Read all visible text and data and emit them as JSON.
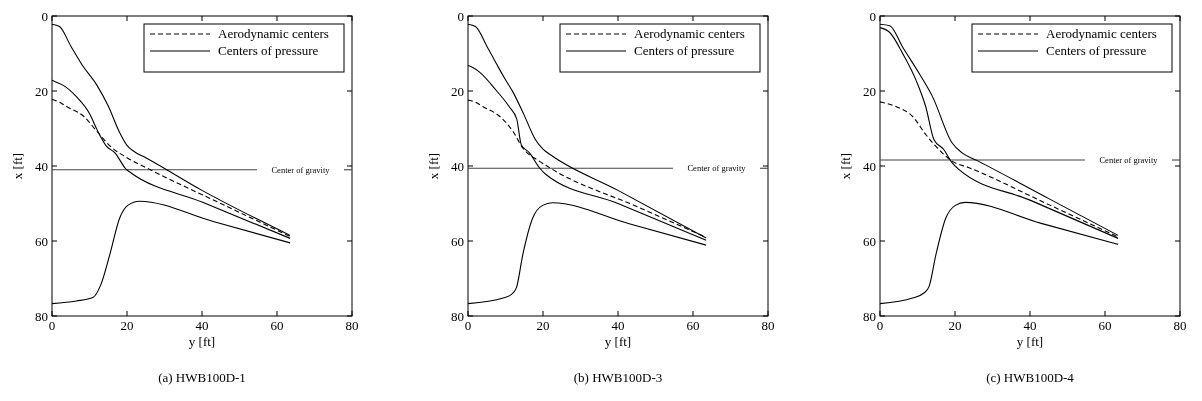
{
  "chart_data": [
    {
      "type": "line",
      "title": "(a) HWB100D-1",
      "xlabel": "y  [ft]",
      "ylabel": "x  [ft]",
      "xlim": [
        0,
        80
      ],
      "ylim": [
        80,
        0
      ],
      "xticks": [
        0,
        20,
        40,
        60,
        80
      ],
      "yticks": [
        0,
        20,
        40,
        60,
        80
      ],
      "legend": "top right",
      "grid": false,
      "ref_lines": [
        {
          "axis": "y",
          "value": 41,
          "label": "Center of gravity",
          "color": "#444444"
        }
      ],
      "series": [
        {
          "name": "Aerodynamic centers",
          "color": "#000000",
          "line_style": "dashed",
          "x": [
            0,
            2,
            4,
            8.5,
            12,
            15.5,
            20,
            26,
            45,
            63.5
          ],
          "values": [
            22.2,
            23,
            24.2,
            26.8,
            30.8,
            34.7,
            37.8,
            40.9,
            50,
            58.8
          ]
        },
        {
          "name": "Centers of pressure",
          "color": "#000000",
          "line_style": "solid",
          "x": [
            0,
            2,
            5,
            8,
            12,
            15,
            18,
            20,
            22,
            25,
            40,
            63.5
          ],
          "values": [
            2.2,
            2.8,
            8,
            13,
            18.5,
            24,
            31,
            34.5,
            36.2,
            37.8,
            46.5,
            58.5
          ]
        },
        {
          "color": "#000000",
          "line_style": "solid",
          "x": [
            0,
            1,
            3,
            6.5,
            10,
            12,
            14.5,
            16.8,
            19.8,
            21,
            40,
            63.5
          ],
          "values": [
            17.1,
            17.6,
            18.5,
            21.5,
            26,
            30.3,
            34.7,
            36.5,
            40.9,
            41.8,
            49.6,
            59.3
          ]
        },
        {
          "color": "#000000",
          "line_style": "solid",
          "x": [
            0,
            6.5,
            11,
            13,
            15.5,
            18,
            20.2,
            23.3,
            43,
            63.5
          ],
          "values": [
            76.7,
            76,
            75,
            71.7,
            63.3,
            54,
            50.5,
            49.4,
            54.8,
            60.5
          ]
        }
      ]
    },
    {
      "type": "line",
      "title": "(b) HWB100D-3",
      "xlabel": "y  [ft]",
      "ylabel": "x  [ft]",
      "xlim": [
        0,
        80
      ],
      "ylim": [
        80,
        0
      ],
      "xticks": [
        0,
        20,
        40,
        60,
        80
      ],
      "yticks": [
        0,
        20,
        40,
        60,
        80
      ],
      "legend": "top right",
      "grid": false,
      "ref_lines": [
        {
          "axis": "y",
          "value": 40.6,
          "label": "Center of gravity",
          "color": "#444444"
        }
      ],
      "series": [
        {
          "name": "Aerodynamic centers",
          "color": "#000000",
          "line_style": "dashed",
          "x": [
            0,
            2,
            4,
            8.5,
            12,
            14.6,
            19,
            22.5,
            45,
            63.5
          ],
          "values": [
            22.4,
            23,
            24.2,
            26.8,
            30.8,
            35.2,
            38.7,
            40.9,
            50.8,
            59
          ]
        },
        {
          "name": "Centers of pressure",
          "color": "#000000",
          "line_style": "solid",
          "x": [
            0,
            2,
            5,
            8,
            10,
            12,
            15,
            18,
            20,
            22,
            40,
            63.5
          ],
          "values": [
            2.2,
            2.8,
            8,
            13.5,
            17,
            20.3,
            26.5,
            33,
            35.5,
            37,
            46.5,
            59.2
          ]
        },
        {
          "color": "#000000",
          "line_style": "solid",
          "x": [
            0,
            1,
            3,
            7.5,
            11,
            13,
            14.2,
            16.4,
            19,
            20.7,
            40,
            63.5
          ],
          "values": [
            13.2,
            13.6,
            14.9,
            19.8,
            24.2,
            27.5,
            34.3,
            36.5,
            40.4,
            42.2,
            50,
            59.8
          ]
        },
        {
          "color": "#000000",
          "line_style": "solid",
          "x": [
            0,
            9.4,
            11.5,
            12.9,
            14.6,
            17.2,
            19.9,
            22.5,
            43,
            63.5
          ],
          "values": [
            76.7,
            75.2,
            74.3,
            72.5,
            63.7,
            54,
            50.5,
            49.8,
            55.4,
            61.1
          ]
        }
      ]
    },
    {
      "type": "line",
      "title": "(c) HWB100D-4",
      "xlabel": "y  [ft]",
      "ylabel": "x  [ft]",
      "xlim": [
        0,
        80
      ],
      "ylim": [
        80,
        0
      ],
      "xticks": [
        0,
        20,
        40,
        60,
        80
      ],
      "yticks": [
        0,
        20,
        40,
        60,
        80
      ],
      "legend": "top right",
      "grid": false,
      "ref_lines": [
        {
          "axis": "y",
          "value": 38.4,
          "label": "Center of gravity",
          "color": "#444444"
        }
      ],
      "series": [
        {
          "name": "Aerodynamic centers",
          "color": "#000000",
          "line_style": "dashed",
          "x": [
            0,
            4.4,
            8.7,
            12.2,
            15.7,
            19.2,
            23.6,
            45,
            63.5
          ],
          "values": [
            22.9,
            24.2,
            26.8,
            31.6,
            35.6,
            38.7,
            40.4,
            50.3,
            58.9
          ]
        },
        {
          "name": "Centers of pressure",
          "color": "#000000",
          "line_style": "solid",
          "x": [
            0,
            2.6,
            6.1,
            10.5,
            14,
            19.2,
            21.9,
            26.2,
            45,
            63.5
          ],
          "values": [
            2.2,
            2.6,
            8.4,
            15.4,
            21.5,
            33.8,
            36.5,
            38.7,
            48.7,
            58.5
          ]
        },
        {
          "color": "#000000",
          "line_style": "solid",
          "x": [
            0,
            2.6,
            6.1,
            9.6,
            12.2,
            14.4,
            17,
            19.2,
            21,
            40,
            63.5
          ],
          "values": [
            3.1,
            4.4,
            10.1,
            17.1,
            24.2,
            33,
            35.6,
            39.1,
            40.9,
            49.1,
            59.3
          ]
        },
        {
          "color": "#000000",
          "line_style": "solid",
          "x": [
            0,
            8.7,
            11.8,
            13.1,
            14.9,
            17.5,
            20.1,
            22.7,
            43,
            63.5
          ],
          "values": [
            76.7,
            75.2,
            73.8,
            72.1,
            63.7,
            54,
            50.5,
            49.7,
            55.3,
            60.9
          ]
        }
      ]
    }
  ]
}
